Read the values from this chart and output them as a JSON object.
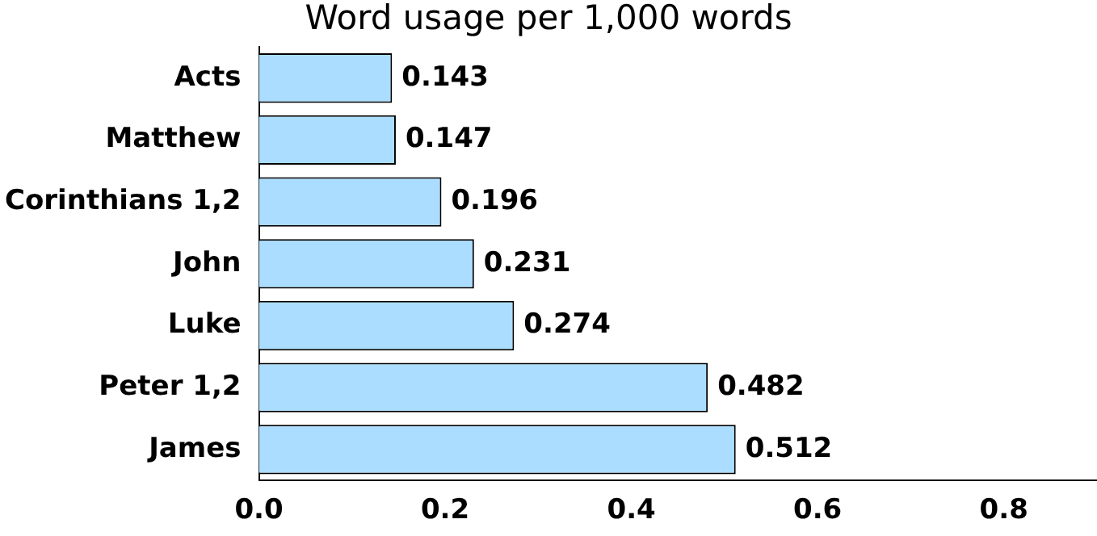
{
  "chart_data": {
    "type": "bar",
    "orientation": "horizontal",
    "title": "Word usage per 1,000 words",
    "categories": [
      "Acts",
      "Matthew",
      "Corinthians 1,2",
      "John",
      "Luke",
      "Peter 1,2",
      "James"
    ],
    "values": [
      0.143,
      0.147,
      0.196,
      0.231,
      0.274,
      0.482,
      0.512
    ],
    "color": "#aaddff",
    "data_labels": true,
    "legend": false,
    "xlim": [
      0,
      0.9
    ],
    "xticks": [
      {
        "value": 0,
        "label": "0.0"
      },
      {
        "value": 0.2,
        "label": "0.2"
      },
      {
        "value": 0.4,
        "label": "0.4"
      },
      {
        "value": 0.6,
        "label": "0.6"
      },
      {
        "value": 0.8,
        "label": "0.8"
      }
    ]
  }
}
